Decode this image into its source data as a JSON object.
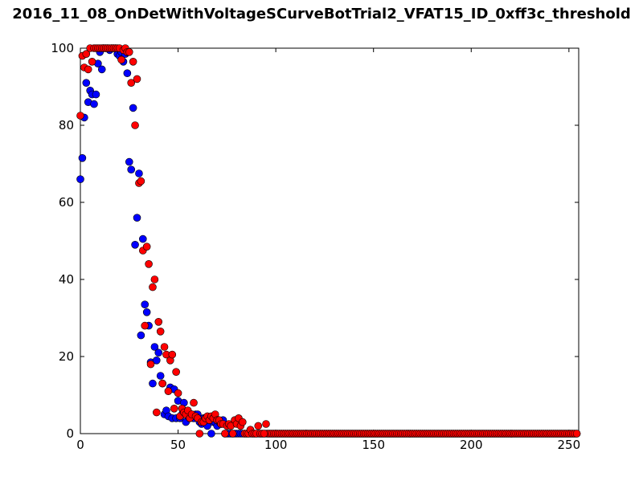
{
  "chart_data": {
    "type": "scatter",
    "title": "2016_11_08_OnDetWithVoltageSCurveBotTrial2_VFAT15_ID_0xff3c_threshold",
    "xlabel": "",
    "ylabel": "",
    "xlim": [
      0,
      255
    ],
    "ylim": [
      0,
      100
    ],
    "x_ticks": [
      "0",
      "50",
      "100",
      "150",
      "200",
      "250"
    ],
    "y_ticks": [
      "0",
      "20",
      "40",
      "60",
      "80",
      "100"
    ],
    "grid": false,
    "legend": "none",
    "x_tail_start": 74,
    "x_tail_end": 254,
    "series": [
      {
        "color": "#0000ff",
        "x": [
          0,
          1,
          2,
          3,
          4,
          5,
          6,
          7,
          8,
          9,
          10,
          11,
          12,
          13,
          14,
          15,
          16,
          17,
          18,
          19,
          20,
          21,
          22,
          23,
          24,
          25,
          26,
          27,
          28,
          29,
          30,
          31,
          32,
          33,
          34,
          35,
          36,
          37,
          38,
          39,
          40,
          41,
          42,
          43,
          44,
          45,
          46,
          47,
          48,
          49,
          50,
          51,
          52,
          53,
          54,
          55,
          56,
          57,
          58,
          59,
          60,
          61,
          62,
          63,
          64,
          65,
          66,
          67,
          68,
          69,
          70,
          71,
          72,
          73
        ],
        "y": [
          66,
          71.5,
          82,
          91,
          86,
          89,
          88,
          85.5,
          88,
          96,
          99,
          94.5,
          100,
          100,
          100,
          99.5,
          100,
          100,
          100,
          98.5,
          98,
          99,
          96.5,
          98.5,
          93.5,
          70.5,
          68.5,
          84.5,
          49,
          56,
          67.5,
          25.5,
          50.5,
          33.5,
          31.5,
          28,
          18.5,
          13,
          22.5,
          19,
          21,
          15,
          13,
          5,
          6,
          4.5,
          12,
          4,
          11.5,
          4,
          8.5,
          4,
          5,
          8,
          3,
          4.5,
          4,
          5,
          4,
          5,
          5,
          3,
          2.5,
          4,
          4,
          2,
          4,
          0,
          3,
          3,
          2,
          3,
          2.5,
          3.5
        ]
      },
      {
        "color": "#ff0000",
        "x": [
          0,
          1,
          2,
          3,
          4,
          5,
          6,
          7,
          8,
          9,
          10,
          11,
          12,
          13,
          14,
          15,
          16,
          17,
          18,
          19,
          20,
          21,
          22,
          23,
          24,
          25,
          26,
          27,
          28,
          29,
          30,
          31,
          32,
          33,
          34,
          35,
          36,
          37,
          38,
          39,
          40,
          41,
          42,
          43,
          44,
          45,
          46,
          47,
          48,
          49,
          50,
          51,
          52,
          53,
          54,
          55,
          56,
          57,
          58,
          59,
          60,
          61,
          62,
          63,
          64,
          65,
          66,
          67,
          68,
          69,
          70,
          71,
          72,
          73,
          74,
          75,
          76,
          77,
          78,
          79,
          80,
          81,
          82,
          83,
          84,
          85,
          86,
          87,
          88,
          89,
          90,
          91,
          92,
          93,
          94,
          95
        ],
        "y": [
          82.5,
          98,
          95,
          98.5,
          94.5,
          100,
          96.5,
          100,
          100,
          100,
          100,
          100,
          100,
          100,
          100,
          100,
          100,
          100,
          100,
          100,
          100,
          97,
          99.5,
          100,
          99,
          99,
          91,
          96.5,
          80,
          92,
          65,
          65.5,
          47.5,
          28,
          48.5,
          44,
          18,
          38,
          40,
          5.5,
          29,
          26.5,
          13,
          22.5,
          20.5,
          11,
          19,
          20.5,
          6.5,
          16,
          10.5,
          4.5,
          6.5,
          5.5,
          5,
          6,
          4,
          5,
          8,
          4.5,
          4,
          0,
          3,
          3,
          4,
          4.5,
          3.5,
          4.5,
          4,
          5,
          3.5,
          3.5,
          2.5,
          2.5,
          0,
          2,
          2.5,
          2,
          0,
          3.5,
          2.5,
          4,
          2,
          3,
          0,
          0,
          0,
          1,
          0,
          0,
          0,
          2,
          0,
          0,
          0,
          2.5
        ]
      }
    ]
  }
}
